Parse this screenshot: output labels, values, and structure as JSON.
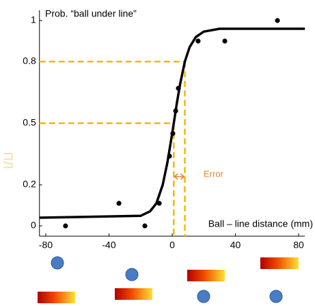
{
  "chart_data": {
    "type": "scatter",
    "title": "Prob. “ball under line”",
    "xlabel": "Ball – line distance (mm)",
    "annotation": "Error",
    "xlim": [
      -84,
      84
    ],
    "ylim": [
      -0.05,
      1.05
    ],
    "xticks": [
      -80,
      -40,
      0,
      40,
      80
    ],
    "yticks": [
      0,
      0.2,
      0.5,
      0.8,
      1
    ],
    "points": {
      "color": "#000000",
      "x": [
        -67.5,
        -33.7,
        -17.3,
        -8.2,
        -1.7,
        0.4,
        2.2,
        3.9,
        16.4,
        33.3,
        66.6
      ],
      "y": [
        0,
        0.11,
        0,
        0.11,
        0.34,
        0.45,
        0.56,
        0.67,
        0.9,
        0.9,
        1.0
      ]
    },
    "fit": {
      "color": "#000000",
      "x": [
        -84,
        -20,
        -14,
        -10,
        -6,
        -3,
        0,
        1,
        3,
        5,
        8,
        11,
        15,
        20,
        30,
        84
      ],
      "y": [
        0.04,
        0.049,
        0.071,
        0.11,
        0.2,
        0.31,
        0.45,
        0.5,
        0.6,
        0.69,
        0.8,
        0.87,
        0.92,
        0.946,
        0.96,
        0.96
      ]
    },
    "thresholds": {
      "color": "#f5b800",
      "x": [
        1,
        8
      ],
      "y": [
        0.5,
        0.8
      ]
    },
    "error_color": "#e8822a"
  }
}
